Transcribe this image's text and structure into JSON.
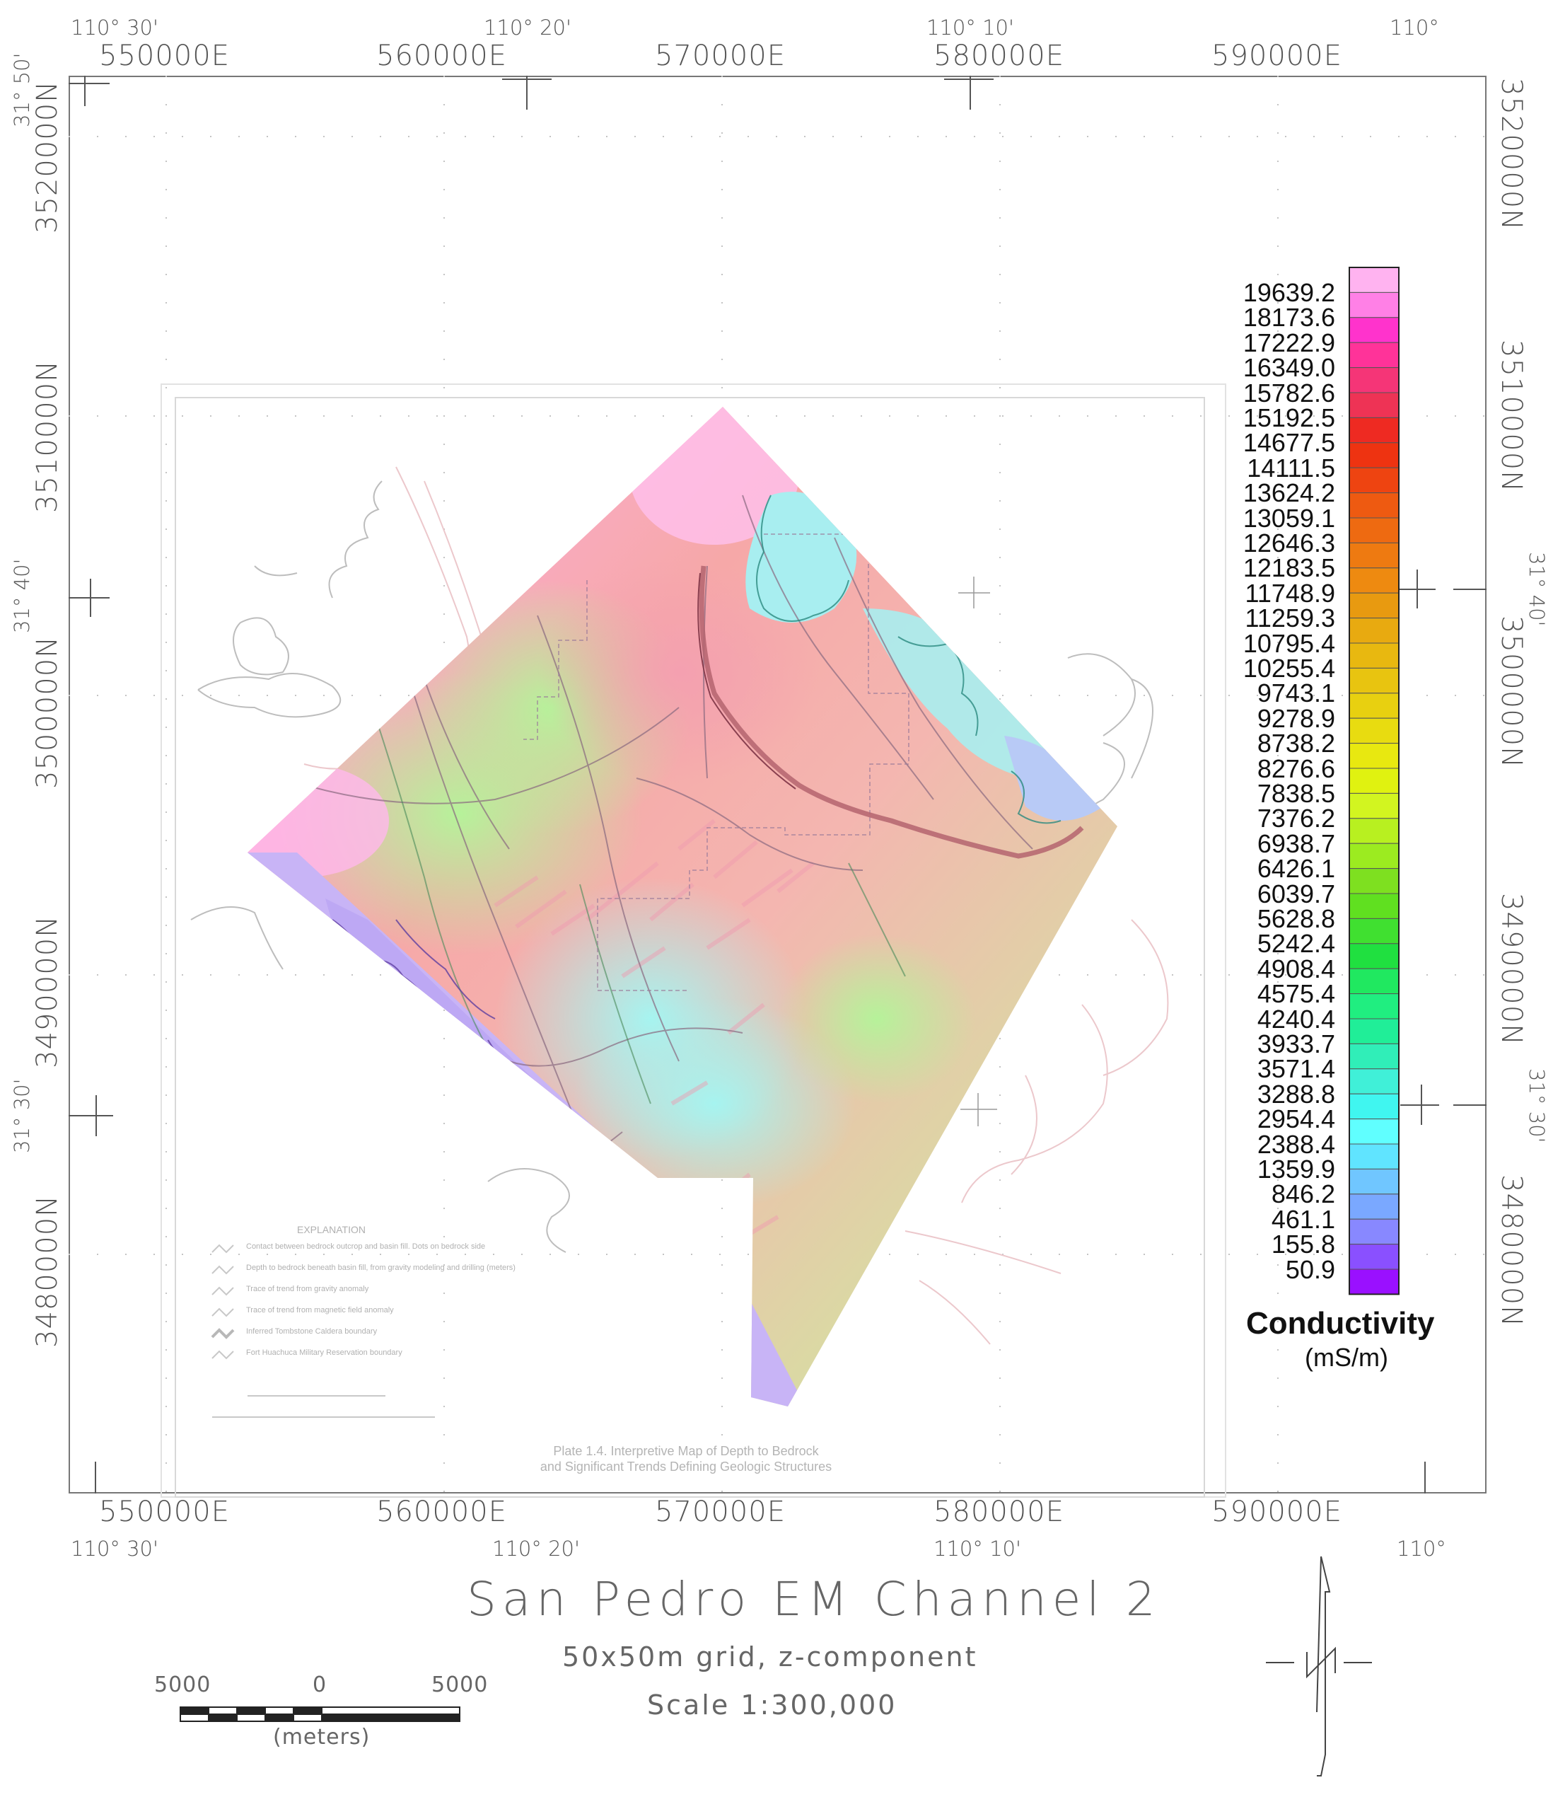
{
  "top_lonlabels": [
    "110° 30'",
    "110° 20'",
    "110° 10'",
    "110°"
  ],
  "bottom_lonlabels": [
    "110° 30'",
    "110° 20'",
    "110° 10'",
    "110°"
  ],
  "top_eastings": [
    "550000E",
    "560000E",
    "570000E",
    "580000E",
    "590000E"
  ],
  "bottom_eastings": [
    "550000E",
    "560000E",
    "570000E",
    "580000E",
    "590000E"
  ],
  "left_latlabels": [
    "31° 50'",
    "31° 40'",
    "31° 30'"
  ],
  "right_latlabels": [
    "31° 40'",
    "31° 30'"
  ],
  "left_northings": [
    "3520000N",
    "3510000N",
    "3500000N",
    "3490000N",
    "3480000N"
  ],
  "right_northings": [
    "3520000N",
    "3510000N",
    "3500000N",
    "3490000N",
    "3480000N"
  ],
  "legend": {
    "title": "Conductivity",
    "unit": "(mS/m)",
    "values": [
      "19639.2",
      "18173.6",
      "17222.9",
      "16349.0",
      "15782.6",
      "15192.5",
      "14677.5",
      "14111.5",
      "13624.2",
      "13059.1",
      "12646.3",
      "12183.5",
      "11748.9",
      "11259.3",
      "10795.4",
      "10255.4",
      "9743.1",
      "9278.9",
      "8738.2",
      "8276.6",
      "7838.5",
      "7376.2",
      "6938.7",
      "6426.1",
      "6039.7",
      "5628.8",
      "5242.4",
      "4908.4",
      "4575.4",
      "4240.4",
      "3933.7",
      "3571.4",
      "3288.8",
      "2954.4",
      "2388.4",
      "1359.9",
      "846.2",
      "461.1",
      "155.8",
      "50.9"
    ],
    "colors": [
      "#ffb3f0",
      "#ff80e6",
      "#ff33cc",
      "#ff3399",
      "#f53577",
      "#ee3355",
      "#ee2a22",
      "#ee3311",
      "#ee4411",
      "#ee5a11",
      "#ee6a11",
      "#ee7a11",
      "#ee8a10",
      "#e89a10",
      "#e8aa10",
      "#e8b810",
      "#e8c410",
      "#e8d010",
      "#e8dc10",
      "#e8e810",
      "#e0f210",
      "#d2f520",
      "#b8f020",
      "#9ceb20",
      "#7ee020",
      "#60e020",
      "#40e030",
      "#20e040",
      "#20e860",
      "#20ee80",
      "#20ee98",
      "#30eeb8",
      "#40f0d8",
      "#40f6f0",
      "#60ffff",
      "#60e4ff",
      "#70c6ff",
      "#7aa8ff",
      "#8888ff",
      "#8a50ff",
      "#9a10ff"
    ]
  },
  "title": "San Pedro EM Channel 2",
  "subtitle": "50x50m grid, z-component",
  "scale_text": "Scale 1:300,000",
  "scalebar": {
    "left": "5000",
    "center": "0",
    "right": "5000",
    "unit": "(meters)"
  },
  "plate_caption": [
    "Plate 1.4. Interpretive Map of Depth to Bedrock",
    "and Significant Trends Defining Geologic Structures"
  ],
  "explanation": {
    "heading": "EXPLANATION",
    "items": [
      "Contact between bedrock outcrop and basin fill. Dots on bedrock side",
      "Depth to bedrock beneath basin fill, from gravity modeling and drilling (meters)",
      "Trace of trend from gravity anomaly",
      "Trace of trend from magnetic field anomaly",
      "Inferred Tombstone Caldera boundary",
      "Fort Huachuca Military Reservation boundary"
    ]
  }
}
